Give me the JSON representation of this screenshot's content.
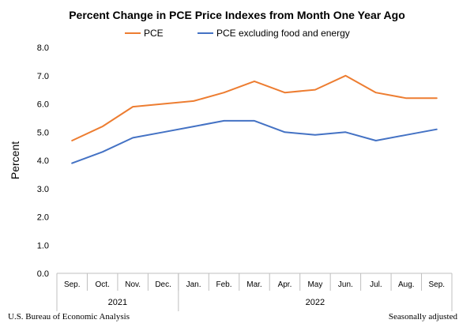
{
  "chart_data": {
    "type": "line",
    "title": "Percent Change in PCE Price Indexes from Month One Year Ago",
    "xlabel": "",
    "ylabel": "Percent",
    "ylim": [
      0,
      8
    ],
    "ytick_labels": [
      "0.0",
      "1.0",
      "2.0",
      "3.0",
      "4.0",
      "5.0",
      "6.0",
      "7.0",
      "8.0"
    ],
    "categories": [
      "Sep.",
      "Oct.",
      "Nov.",
      "Dec.",
      "Jan.",
      "Feb.",
      "Mar.",
      "Apr.",
      "May",
      "Jun.",
      "Jul.",
      "Aug.",
      "Sep."
    ],
    "year_groups": [
      {
        "label": "2021",
        "count": 4
      },
      {
        "label": "2022",
        "count": 9
      }
    ],
    "grid": false,
    "legend_position": "top",
    "series": [
      {
        "name": "PCE",
        "color": "#ED7D31",
        "values": [
          4.7,
          5.2,
          5.9,
          6.0,
          6.1,
          6.4,
          6.8,
          6.4,
          6.5,
          7.0,
          6.4,
          6.2,
          6.2
        ]
      },
      {
        "name": "PCE excluding food and energy",
        "color": "#4472C4",
        "values": [
          3.9,
          4.3,
          4.8,
          5.0,
          5.2,
          5.4,
          5.4,
          5.0,
          4.9,
          5.0,
          4.7,
          4.9,
          5.1
        ]
      }
    ]
  },
  "footer": {
    "source": "U.S. Bureau of Economic Analysis",
    "note": "Seasonally adjusted"
  }
}
